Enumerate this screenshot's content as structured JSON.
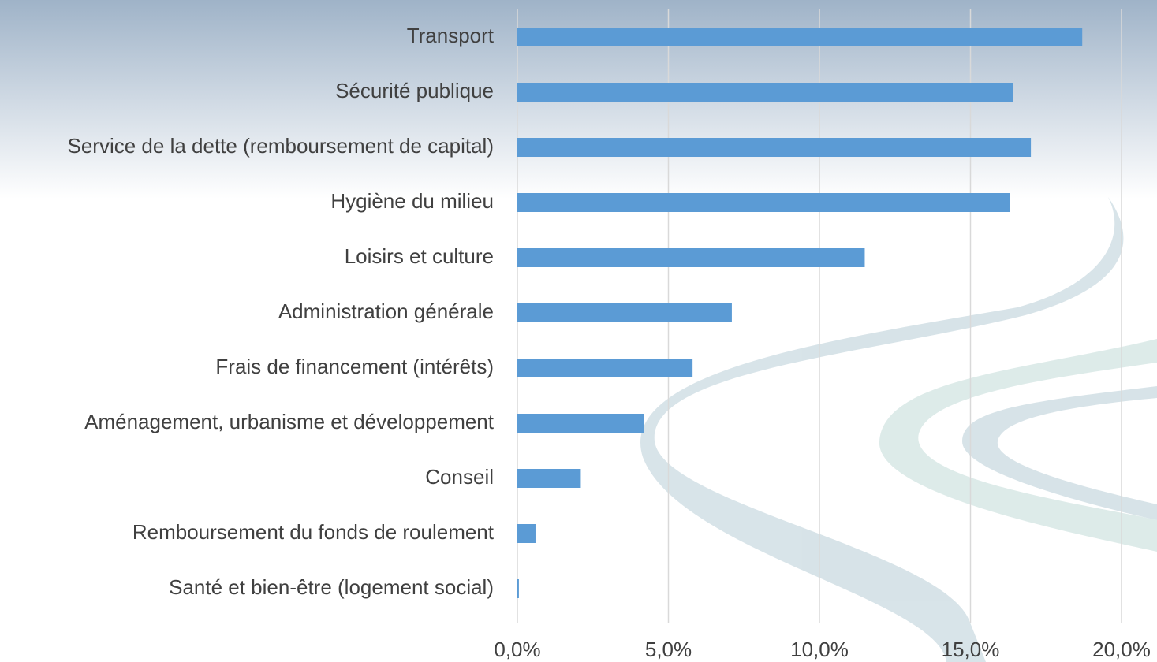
{
  "chart_data": {
    "type": "bar",
    "orientation": "horizontal",
    "categories": [
      "Transport",
      "Sécurité publique",
      "Service de la dette (remboursement de capital)",
      "Hygiène du milieu",
      "Loisirs et culture",
      "Administration générale",
      "Frais de financement (intérêts)",
      "Aménagement, urbanisme et développement",
      "Conseil",
      "Remboursement du fonds de roulement",
      "Santé et bien-être (logement social)"
    ],
    "values": [
      18.7,
      16.4,
      17.0,
      16.3,
      11.5,
      7.1,
      5.8,
      4.2,
      2.1,
      0.6,
      0.05
    ],
    "color": "#5b9bd5",
    "xlim": [
      0,
      20
    ],
    "xticks": [
      {
        "value": 0,
        "label": "0,0%"
      },
      {
        "value": 5,
        "label": "5,0%"
      },
      {
        "value": 10,
        "label": "10,0%"
      },
      {
        "value": 15,
        "label": "15,0%"
      },
      {
        "value": 20,
        "label": "20,0%"
      }
    ],
    "grid": true
  }
}
